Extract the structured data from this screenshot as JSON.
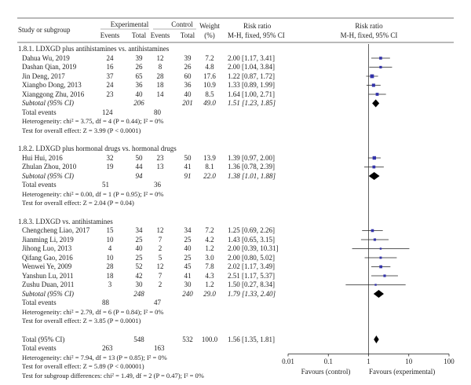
{
  "headers": {
    "study": "Study or subgroup",
    "experimental": "Experimental",
    "control": "Control",
    "weight": "Weight",
    "weight_unit": "(%)",
    "events": "Events",
    "total": "Total",
    "rr": "Risk ratio",
    "rr_method": "M-H, fixed, 95% CI",
    "plot_rr": "Risk ratio",
    "plot_method": "M-H, fixed, 95% CI"
  },
  "groups": [
    {
      "title": "1.8.1. LDXGD plus antihistamines vs. antihistamines",
      "studies": [
        {
          "name": "Dahua Wu, 2019",
          "ee": "24",
          "et": "39",
          "ce": "12",
          "ct": "39",
          "w": "7.2",
          "ci": "2.00 [1.17, 3.41]"
        },
        {
          "name": "Dashan Qian, 2019",
          "ee": "16",
          "et": "26",
          "ce": "8",
          "ct": "26",
          "w": "4.8",
          "ci": "2.00 [1.04, 3.84]"
        },
        {
          "name": "Jin Deng, 2017",
          "ee": "37",
          "et": "65",
          "ce": "28",
          "ct": "60",
          "w": "17.6",
          "ci": "1.22 [0.87, 1.72]"
        },
        {
          "name": "Xiangbo Dong, 2013",
          "ee": "24",
          "et": "36",
          "ce": "18",
          "ct": "36",
          "w": "10.9",
          "ci": "1.33 [0.89, 1.99]"
        },
        {
          "name": "Xianggong Zhu, 2016",
          "ee": "23",
          "et": "40",
          "ce": "14",
          "ct": "40",
          "w": "8.5",
          "ci": "1.64 [1.00, 2.71]"
        }
      ],
      "subtotal": {
        "label": "Subtotal (95% CI)",
        "et": "206",
        "ct": "201",
        "w": "49.0",
        "ci": "1.51 [1.23, 1.85]"
      },
      "events_label": "Total events",
      "events_e": "124",
      "events_c": "80",
      "het": "Heterogeneity: chi² = 3.75, df = 4 (P = 0.44); I² = 0%",
      "test": "Test for overall effect: Z = 3.99 (P < 0.0001)"
    },
    {
      "title": "1.8.2. LDXGD plus hormonal drugs vs. hormonal drugs",
      "studies": [
        {
          "name": "Hui Hui, 2016",
          "ee": "32",
          "et": "50",
          "ce": "23",
          "ct": "50",
          "w": "13.9",
          "ci": "1.39 [0.97, 2.00]"
        },
        {
          "name": "Zhulan Zhou, 2010",
          "ee": "19",
          "et": "44",
          "ce": "13",
          "ct": "41",
          "w": "8.1",
          "ci": "1.36 [0.78, 2.39]"
        }
      ],
      "subtotal": {
        "label": "Subtotal (95% CI)",
        "et": "94",
        "ct": "91",
        "w": "22.0",
        "ci": "1.38 [1.01, 1.88]"
      },
      "events_label": "Total events",
      "events_e": "51",
      "events_c": "36",
      "het": "Heterogeneity: chi² = 0.00, df = 1 (P = 0.95); I² = 0%",
      "test": "Test for overall effect: Z = 2.04 (P = 0.04)"
    },
    {
      "title": "1.8.3. LDXGD vs. antihistamines",
      "studies": [
        {
          "name": "Chengcheng Liao, 2017",
          "ee": "15",
          "et": "34",
          "ce": "12",
          "ct": "34",
          "w": "7.2",
          "ci": "1.25 [0.69, 2.26]"
        },
        {
          "name": "Jianming Li, 2019",
          "ee": "10",
          "et": "25",
          "ce": "7",
          "ct": "25",
          "w": "4.2",
          "ci": "1.43 [0.65, 3.15]"
        },
        {
          "name": "Jihong Luo, 2013",
          "ee": "4",
          "et": "40",
          "ce": "2",
          "ct": "40",
          "w": "1.2",
          "ci": "2.00 [0.39, 10.31]"
        },
        {
          "name": "Qifang Gao, 2016",
          "ee": "10",
          "et": "25",
          "ce": "5",
          "ct": "25",
          "w": "3.0",
          "ci": "2.00 [0.80, 5.02]"
        },
        {
          "name": "Wenwei Ye, 2009",
          "ee": "28",
          "et": "52",
          "ce": "12",
          "ct": "45",
          "w": "7.8",
          "ci": "2.02 [1.17, 3.49]"
        },
        {
          "name": "Yanshun Lu, 2011",
          "ee": "18",
          "et": "42",
          "ce": "7",
          "ct": "41",
          "w": "4.3",
          "ci": "2.51 [1.17, 5.37]"
        },
        {
          "name": "Zushu Duan, 2011",
          "ee": "3",
          "et": "30",
          "ce": "2",
          "ct": "30",
          "w": "1.2",
          "ci": "1.50 [0.27, 8.34]"
        }
      ],
      "subtotal": {
        "label": "Subtotal (95% CI)",
        "et": "248",
        "ct": "240",
        "w": "29.0",
        "ci": "1.79 [1.33, 2.40]"
      },
      "events_label": "Total events",
      "events_e": "88",
      "events_c": "47",
      "het": "Heterogeneity: chi² = 2.79, df = 6 (P = 0.84); I² = 0%",
      "test": "Test for overall effect: Z = 3.85 (P = 0.0001)"
    }
  ],
  "overall": {
    "label": "Total (95% CI)",
    "et": "548",
    "ct": "532",
    "w": "100.0",
    "ci": "1.56 [1.35, 1.81]",
    "events_label": "Total events",
    "events_e": "263",
    "events_c": "163",
    "het": "Heterogeneity: chi² = 7.94, df = 13 (P = 0.85); I² = 0%",
    "test": "Test for overall effect: Z = 5.89 (P < 0.00001)",
    "subgroup": "Test for subgroup differences: chi² = 1.49, df = 2 (P = 0.47); I² = 0%"
  },
  "axis": {
    "ticks": [
      "0.01",
      "0.1",
      "1",
      "10",
      "100"
    ],
    "left_label": "Favours (control)",
    "right_label": "Favours (experimental)"
  },
  "chart_data": {
    "type": "forest",
    "scale": "log",
    "xlim": [
      0.01,
      100
    ],
    "x_ticks": [
      0.01,
      0.1,
      1,
      10,
      100
    ],
    "studies": [
      {
        "rr": 2.0,
        "lo": 1.17,
        "hi": 3.41,
        "w": 7.2
      },
      {
        "rr": 2.0,
        "lo": 1.04,
        "hi": 3.84,
        "w": 4.8
      },
      {
        "rr": 1.22,
        "lo": 0.87,
        "hi": 1.72,
        "w": 17.6
      },
      {
        "rr": 1.33,
        "lo": 0.89,
        "hi": 1.99,
        "w": 10.9
      },
      {
        "rr": 1.64,
        "lo": 1.0,
        "hi": 2.71,
        "w": 8.5
      },
      {
        "rr": 1.39,
        "lo": 0.97,
        "hi": 2.0,
        "w": 13.9
      },
      {
        "rr": 1.36,
        "lo": 0.78,
        "hi": 2.39,
        "w": 8.1
      },
      {
        "rr": 1.25,
        "lo": 0.69,
        "hi": 2.26,
        "w": 7.2
      },
      {
        "rr": 1.43,
        "lo": 0.65,
        "hi": 3.15,
        "w": 4.2
      },
      {
        "rr": 2.0,
        "lo": 0.39,
        "hi": 10.31,
        "w": 1.2
      },
      {
        "rr": 2.0,
        "lo": 0.8,
        "hi": 5.02,
        "w": 3.0
      },
      {
        "rr": 2.02,
        "lo": 1.17,
        "hi": 3.49,
        "w": 7.8
      },
      {
        "rr": 2.51,
        "lo": 1.17,
        "hi": 5.37,
        "w": 4.3
      },
      {
        "rr": 1.5,
        "lo": 0.27,
        "hi": 8.34,
        "w": 1.2
      }
    ],
    "subtotals": [
      {
        "rr": 1.51,
        "lo": 1.23,
        "hi": 1.85
      },
      {
        "rr": 1.38,
        "lo": 1.01,
        "hi": 1.88
      },
      {
        "rr": 1.79,
        "lo": 1.33,
        "hi": 2.4
      }
    ],
    "overall": {
      "rr": 1.56,
      "lo": 1.35,
      "hi": 1.81
    },
    "colors": {
      "square": "#3333aa",
      "diamond": "#000000",
      "line": "#222222"
    }
  }
}
